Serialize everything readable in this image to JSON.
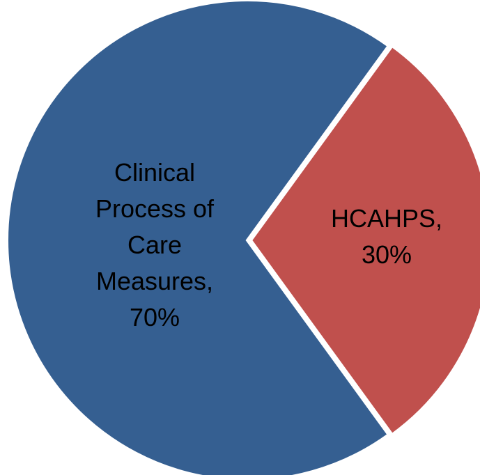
{
  "chart_data": {
    "type": "pie",
    "categories": [
      "Clinical Process of Care Measures,",
      "HCAHPS,"
    ],
    "values": [
      70,
      30
    ],
    "value_labels": [
      "70%",
      "30%"
    ],
    "colors": [
      "#355f91",
      "#c0504d"
    ]
  }
}
